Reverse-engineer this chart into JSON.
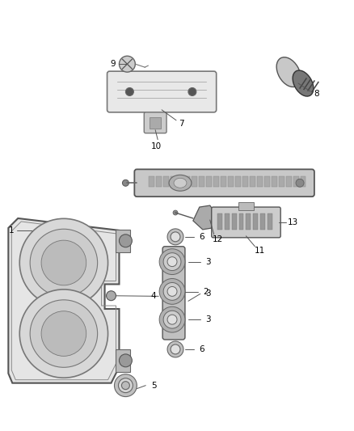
{
  "bg_color": "#ffffff",
  "line_color": "#555555",
  "part_color": "#777777",
  "part_fill": "#dddddd",
  "dark_fill": "#aaaaaa",
  "fig_width": 4.38,
  "fig_height": 5.33,
  "dpi": 100
}
